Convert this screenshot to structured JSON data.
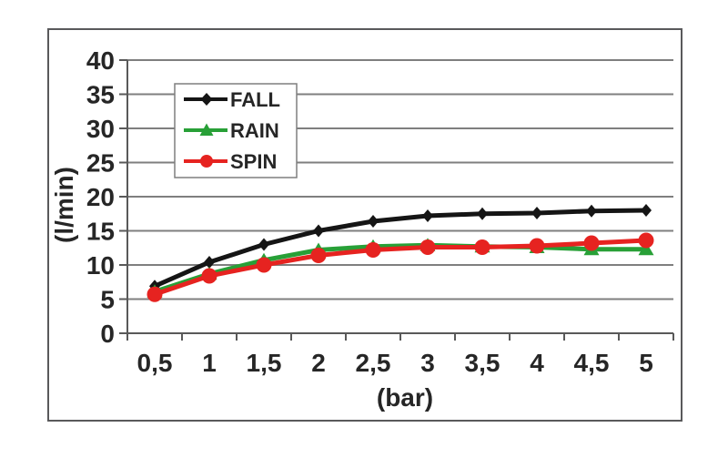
{
  "chart_data": {
    "type": "line",
    "title": "",
    "xlabel": "(bar)",
    "ylabel": "(l/min)",
    "categories": [
      "0,5",
      "1",
      "1,5",
      "2",
      "2,5",
      "3",
      "3,5",
      "4",
      "4,5",
      "5"
    ],
    "x_values": [
      0.5,
      1,
      1.5,
      2,
      2.5,
      3,
      3.5,
      4,
      4.5,
      5
    ],
    "ylim": [
      0,
      40
    ],
    "y_ticks": [
      "0",
      "5",
      "10",
      "15",
      "20",
      "25",
      "30",
      "35",
      "40"
    ],
    "grid": "horizontal",
    "legend_position": "upper-left-inside",
    "axis_color": "#595959",
    "grid_color": "#7f7f7f",
    "text_color": "#262626",
    "frame_color": "#59595b",
    "background_color": "#ffffff",
    "series": [
      {
        "name": "FALL",
        "color": "#151515",
        "marker": "diamond",
        "values": [
          6.9,
          10.4,
          13.0,
          15.0,
          16.4,
          17.2,
          17.5,
          17.6,
          17.9,
          18.0
        ]
      },
      {
        "name": "RAIN",
        "color": "#28a037",
        "marker": "triangle",
        "values": [
          6.1,
          8.7,
          10.7,
          12.2,
          12.7,
          12.9,
          12.7,
          12.6,
          12.3,
          12.3
        ]
      },
      {
        "name": "SPIN",
        "color": "#e62320",
        "marker": "circle",
        "values": [
          5.7,
          8.4,
          10.0,
          11.4,
          12.2,
          12.6,
          12.6,
          12.8,
          13.2,
          13.6
        ]
      }
    ]
  }
}
